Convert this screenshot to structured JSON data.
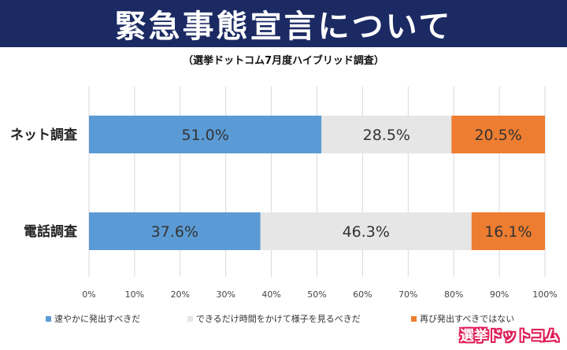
{
  "header": {
    "title": "緊急事態宣言について",
    "subtitle": "（選挙ドットコム7月度ハイブリッド調査）"
  },
  "brand": {
    "logo_text": "選挙ドットコム"
  },
  "colors": {
    "banner": "#1b2a63",
    "series": [
      "#5b9bd5",
      "#e6e6e6",
      "#ed7d31"
    ]
  },
  "chart_data": {
    "type": "bar",
    "orientation": "horizontal",
    "stacked": "100%",
    "categories": [
      "ネット調査",
      "電話調査"
    ],
    "series": [
      {
        "name": "速やかに発出すべきだ",
        "values": [
          51.0,
          37.6
        ],
        "labels": [
          "51.0%",
          "37.6%"
        ]
      },
      {
        "name": "できるだけ時間をかけて様子を見るべきだ",
        "values": [
          28.5,
          46.3
        ],
        "labels": [
          "28.5%",
          "46.3%"
        ]
      },
      {
        "name": "再び発出すべきではない",
        "values": [
          20.5,
          16.1
        ],
        "labels": [
          "20.5%",
          "16.1%"
        ]
      }
    ],
    "xlim": [
      0,
      100
    ],
    "xticks": [
      "0%",
      "10%",
      "20%",
      "30%",
      "40%",
      "50%",
      "60%",
      "70%",
      "80%",
      "90%",
      "100%"
    ],
    "grid": true,
    "legend": "bottom"
  }
}
